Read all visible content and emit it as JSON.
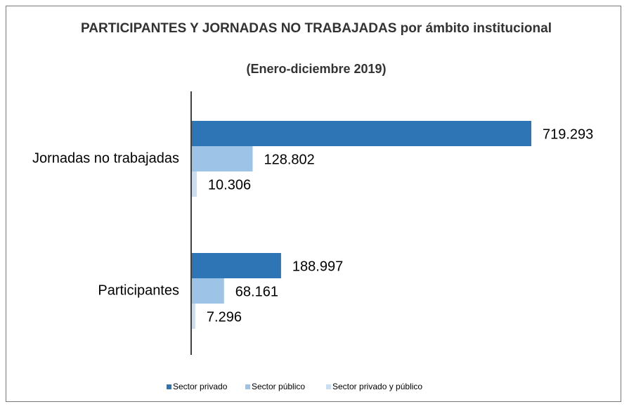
{
  "chart_data": {
    "type": "hbar",
    "title": "PARTICIPANTES Y JORNADAS NO TRABAJADAS por ámbito institucional",
    "subtitle": "(Enero-diciembre 2019)",
    "categories": [
      "Jornadas no trabajadas",
      "Participantes"
    ],
    "series": [
      {
        "name": "Sector privado",
        "color": "#2e75b6",
        "values": [
          719293,
          188997
        ],
        "value_labels": [
          "719.293",
          "188.997"
        ]
      },
      {
        "name": "Sector público",
        "color": "#9dc3e6",
        "values": [
          128802,
          68161
        ],
        "value_labels": [
          "128.802",
          "68.161"
        ]
      },
      {
        "name": "Sector privado y público",
        "color": "#c9def2",
        "values": [
          10306,
          7296
        ],
        "value_labels": [
          "10.306",
          "7.296"
        ]
      }
    ],
    "legend": "bottom"
  }
}
